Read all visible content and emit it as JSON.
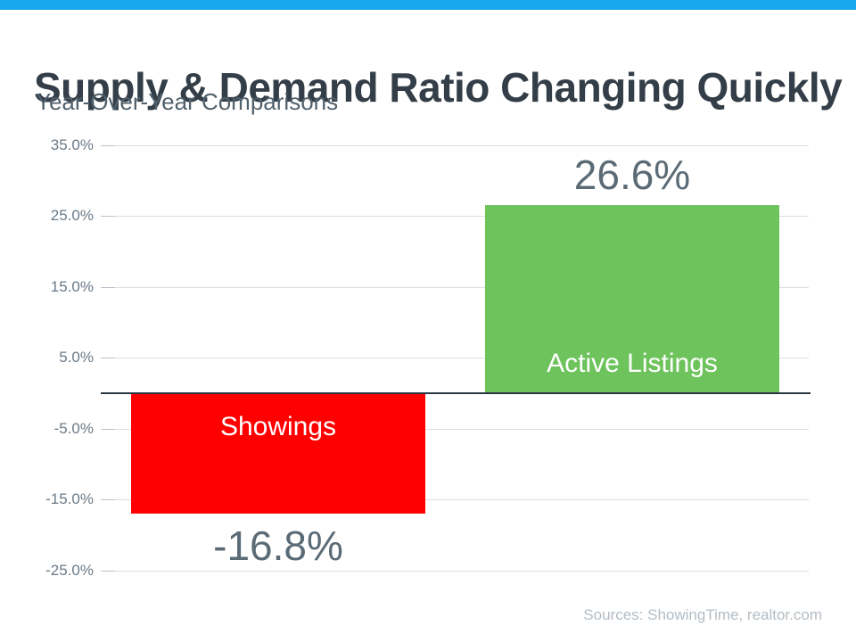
{
  "slide": {
    "title": "Supply & Demand Ratio Changing Quickly",
    "subtitle": "Year-Over-Year Comparisons",
    "sources": "Sources: ShowingTime, realtor.com",
    "accent_color": "#17a8ec"
  },
  "chart_data": {
    "type": "bar",
    "title": "Supply & Demand Ratio Changing Quickly",
    "subtitle": "Year-Over-Year Comparisons",
    "categories": [
      "Showings",
      "Active Listings"
    ],
    "values": [
      -16.8,
      26.6
    ],
    "value_labels": [
      "-16.8%",
      "26.6%"
    ],
    "bar_colors": [
      "#ff0000",
      "#6ec35c"
    ],
    "bar_label_color": "#ffffff",
    "value_label_color": "#5b6b76",
    "xlabel": "",
    "ylabel": "",
    "ylim": [
      -25,
      35
    ],
    "yticks": [
      35,
      25,
      15,
      5,
      -5,
      -15,
      -25
    ],
    "ytick_labels": [
      "35.0%",
      "25.0%",
      "15.0%",
      "5.0%",
      "-5.0%",
      "-15.0%",
      "-25.0%"
    ],
    "grid": true,
    "legend_position": "none"
  }
}
